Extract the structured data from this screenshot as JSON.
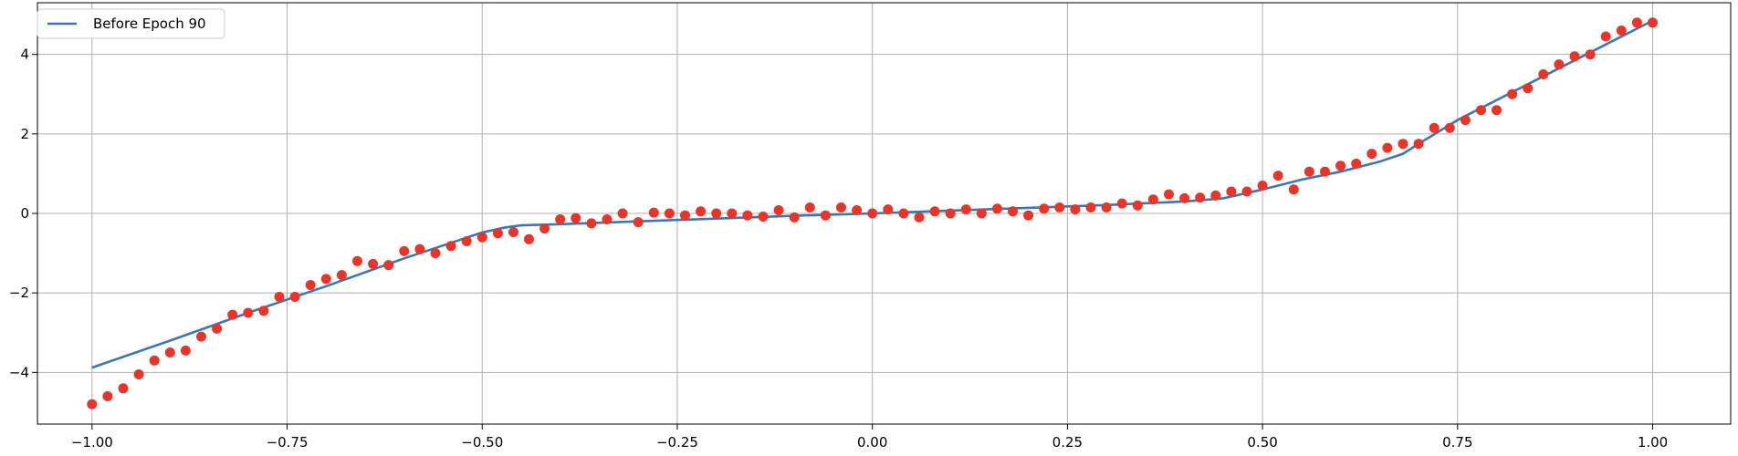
{
  "chart_data": {
    "type": "line",
    "title": "",
    "xlabel": "",
    "ylabel": "",
    "xlim": [
      -1.07,
      1.1
    ],
    "ylim": [
      -5.3,
      5.3
    ],
    "grid": true,
    "legend": {
      "placement": "top-left",
      "entries": [
        "Before Epoch 90"
      ]
    },
    "x_ticks": [
      {
        "value": -1.0,
        "label": "−1.00"
      },
      {
        "value": -0.75,
        "label": "−0.75"
      },
      {
        "value": -0.5,
        "label": "−0.50"
      },
      {
        "value": -0.25,
        "label": "−0.25"
      },
      {
        "value": 0.0,
        "label": "0.00"
      },
      {
        "value": 0.25,
        "label": "0.25"
      },
      {
        "value": 0.5,
        "label": "0.50"
      },
      {
        "value": 0.75,
        "label": "0.75"
      },
      {
        "value": 1.0,
        "label": "1.00"
      }
    ],
    "y_ticks": [
      {
        "value": -4,
        "label": "−4"
      },
      {
        "value": -2,
        "label": "−2"
      },
      {
        "value": 0,
        "label": "0"
      },
      {
        "value": 2,
        "label": "2"
      },
      {
        "value": 4,
        "label": "4"
      }
    ],
    "series": [
      {
        "name": "Before Epoch 90",
        "kind": "line",
        "color": "#3d76b3",
        "x": [
          -1.0,
          -0.9,
          -0.8,
          -0.7,
          -0.6,
          -0.5,
          -0.47,
          -0.45,
          -0.4,
          -0.3,
          -0.2,
          -0.1,
          0.0,
          0.1,
          0.2,
          0.3,
          0.4,
          0.45,
          0.5,
          0.55,
          0.6,
          0.65,
          0.68,
          0.7,
          0.75,
          0.8,
          0.9,
          1.0
        ],
        "y": [
          -3.88,
          -3.2,
          -2.5,
          -1.83,
          -1.13,
          -0.48,
          -0.35,
          -0.3,
          -0.27,
          -0.2,
          -0.13,
          -0.06,
          0.0,
          0.07,
          0.14,
          0.21,
          0.3,
          0.38,
          0.6,
          0.85,
          1.05,
          1.3,
          1.5,
          1.75,
          2.35,
          2.85,
          3.85,
          4.85
        ]
      },
      {
        "name": "",
        "kind": "scatter",
        "color": "#e8352a",
        "x": [
          -1.0,
          -0.98,
          -0.96,
          -0.94,
          -0.92,
          -0.9,
          -0.88,
          -0.86,
          -0.84,
          -0.82,
          -0.8,
          -0.78,
          -0.76,
          -0.74,
          -0.72,
          -0.7,
          -0.68,
          -0.66,
          -0.64,
          -0.62,
          -0.6,
          -0.58,
          -0.56,
          -0.54,
          -0.52,
          -0.5,
          -0.48,
          -0.46,
          -0.44,
          -0.42,
          -0.4,
          -0.38,
          -0.36,
          -0.34,
          -0.32,
          -0.3,
          -0.28,
          -0.26,
          -0.24,
          -0.22,
          -0.2,
          -0.18,
          -0.16,
          -0.14,
          -0.12,
          -0.1,
          -0.08,
          -0.06,
          -0.04,
          -0.02,
          0.0,
          0.02,
          0.04,
          0.06,
          0.08,
          0.1,
          0.12,
          0.14,
          0.16,
          0.18,
          0.2,
          0.22,
          0.24,
          0.26,
          0.28,
          0.3,
          0.32,
          0.34,
          0.36,
          0.38,
          0.4,
          0.42,
          0.44,
          0.46,
          0.48,
          0.5,
          0.52,
          0.54,
          0.56,
          0.58,
          0.6,
          0.62,
          0.64,
          0.66,
          0.68,
          0.7,
          0.72,
          0.74,
          0.76,
          0.78,
          0.8,
          0.82,
          0.84,
          0.86,
          0.88,
          0.9,
          0.92,
          0.94,
          0.96,
          0.98,
          1.0
        ],
        "y": [
          -4.8,
          -4.6,
          -4.4,
          -4.05,
          -3.7,
          -3.5,
          -3.45,
          -3.1,
          -2.9,
          -2.55,
          -2.5,
          -2.45,
          -2.1,
          -2.1,
          -1.8,
          -1.65,
          -1.55,
          -1.2,
          -1.27,
          -1.3,
          -0.95,
          -0.9,
          -1.0,
          -0.82,
          -0.7,
          -0.6,
          -0.5,
          -0.47,
          -0.65,
          -0.38,
          -0.15,
          -0.12,
          -0.25,
          -0.15,
          0.0,
          -0.22,
          0.02,
          0.0,
          -0.05,
          0.05,
          0.0,
          0.0,
          -0.05,
          -0.08,
          0.08,
          -0.1,
          0.15,
          -0.05,
          0.15,
          0.08,
          0.0,
          0.1,
          0.0,
          -0.1,
          0.05,
          0.0,
          0.1,
          0.0,
          0.12,
          0.05,
          -0.05,
          0.12,
          0.15,
          0.1,
          0.15,
          0.15,
          0.25,
          0.2,
          0.35,
          0.48,
          0.38,
          0.4,
          0.45,
          0.55,
          0.55,
          0.7,
          0.95,
          0.6,
          1.05,
          1.05,
          1.2,
          1.25,
          1.5,
          1.65,
          1.75,
          1.75,
          2.15,
          2.15,
          2.35,
          2.6,
          2.6,
          3.0,
          3.15,
          3.5,
          3.75,
          3.95,
          4.0,
          4.45,
          4.6,
          4.8,
          4.8
        ]
      }
    ]
  }
}
